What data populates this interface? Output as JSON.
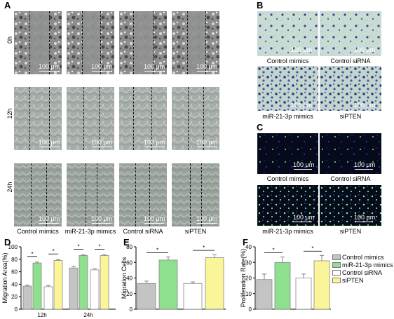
{
  "panel_letters": {
    "A": "A",
    "B": "B",
    "C": "C",
    "D": "D",
    "E": "E",
    "F": "F"
  },
  "panel_a": {
    "row_labels": [
      "0h",
      "12h",
      "24h"
    ],
    "column_labels": [
      "Control mimics",
      "miR-21-3p mimics",
      "Control siRNA",
      "siPTEN"
    ],
    "scale_bar": "100 μm"
  },
  "panel_b": {
    "labels": [
      "Control mimics",
      "Control siRNA",
      "miR-21-3p mimics",
      "siPTEN"
    ],
    "scale_bar": "100 μm"
  },
  "panel_c": {
    "labels": [
      "Control mimics",
      "Control siRNA",
      "miR-21-3p mimics",
      "siPTEN"
    ],
    "scale_bar": "100 μm"
  },
  "colors": {
    "control_mimics": "#c4c4c4",
    "mir21_mimics": "#8ee08e",
    "control_sirna": "#ffffff",
    "sipten": "#fbf59a"
  },
  "legend": [
    "Control mimics",
    "miR-21-3p mimics",
    "Control siRNA",
    "siPTEN"
  ],
  "chart_data": [
    {
      "type": "bar",
      "panel": "D",
      "ylabel": "Migration Area(%)",
      "categories": [
        "12h",
        "24h"
      ],
      "yticks": [
        "0",
        "20",
        "40",
        "60",
        "80",
        "100"
      ],
      "ylim": [
        0,
        100
      ],
      "series": [
        {
          "name": "Control mimics",
          "values": [
            37,
            66
          ],
          "errors": [
            1.5,
            2.5
          ]
        },
        {
          "name": "miR-21-3p mimics",
          "values": [
            74,
            86
          ],
          "errors": [
            1.5,
            1.2
          ]
        },
        {
          "name": "Control siRNA",
          "values": [
            36,
            63
          ],
          "errors": [
            2,
            1.5
          ]
        },
        {
          "name": "siPTEN",
          "values": [
            78,
            86
          ],
          "errors": [
            1.5,
            1.2
          ]
        }
      ],
      "significance": [
        "*",
        "*",
        "*",
        "*"
      ]
    },
    {
      "type": "bar",
      "panel": "E",
      "ylabel": "Migration Cells",
      "yticks": [
        "0",
        "20",
        "40",
        "60",
        "80"
      ],
      "ylim": [
        0,
        80
      ],
      "series": [
        {
          "name": "Control mimics",
          "values": [
            33
          ],
          "errors": [
            3
          ]
        },
        {
          "name": "miR-21-3p mimics",
          "values": [
            63
          ],
          "errors": [
            4
          ]
        },
        {
          "name": "Control siRNA",
          "values": [
            33
          ],
          "errors": [
            2
          ]
        },
        {
          "name": "siPTEN",
          "values": [
            66
          ],
          "errors": [
            4
          ]
        }
      ],
      "significance": [
        "*",
        "*"
      ]
    },
    {
      "type": "bar",
      "panel": "F",
      "ylabel": "Proliferation Rate(%)",
      "yticks": [
        "0",
        "10",
        "20",
        "30",
        "40"
      ],
      "ylim": [
        0,
        40
      ],
      "series": [
        {
          "name": "Control mimics",
          "values": [
            19
          ],
          "errors": [
            3.5
          ]
        },
        {
          "name": "miR-21-3p mimics",
          "values": [
            30
          ],
          "errors": [
            3.5
          ]
        },
        {
          "name": "Control siRNA",
          "values": [
            20
          ],
          "errors": [
            2.5
          ]
        },
        {
          "name": "siPTEN",
          "values": [
            31
          ],
          "errors": [
            3.5
          ]
        }
      ],
      "significance": [
        "*",
        "*"
      ]
    }
  ]
}
